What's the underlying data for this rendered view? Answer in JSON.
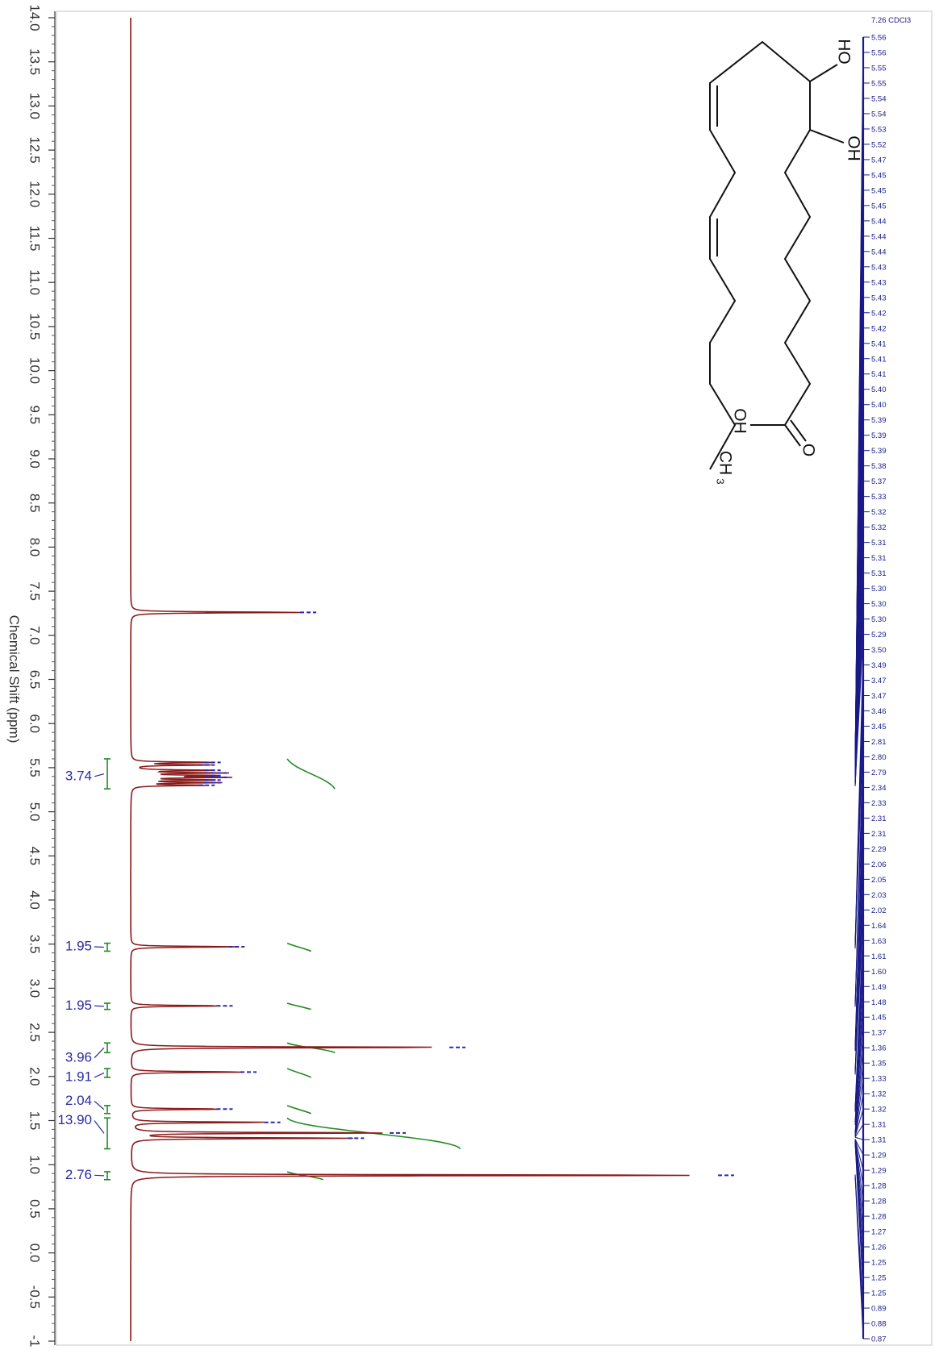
{
  "chart_data": {
    "type": "line",
    "xlabel": "Chemical Shift (ppm)",
    "xlim": [
      -1.0,
      14.0
    ],
    "x_ticks": [
      14.0,
      13.5,
      13.0,
      12.5,
      12.0,
      11.5,
      11.0,
      10.5,
      10.0,
      9.5,
      9.0,
      8.5,
      8.0,
      7.5,
      7.0,
      6.5,
      6.0,
      5.5,
      5.0,
      4.5,
      4.0,
      3.5,
      3.0,
      2.5,
      2.0,
      1.5,
      1.0,
      0.5,
      0.0,
      -0.5,
      -1.0
    ],
    "x_tick_labels": [
      "14.0",
      "13.5",
      "13.0",
      "12.5",
      "12.0",
      "11.5",
      "11.0",
      "10.5",
      "10.0",
      "9.5",
      "9.0",
      "8.5",
      "8.0",
      "7.5",
      "7.0",
      "6.5",
      "6.0",
      "5.5",
      "5.0",
      "4.5",
      "4.0",
      "3.5",
      "3.0",
      "2.5",
      "2.0",
      "1.5",
      "1.0",
      "0.5",
      "0.0",
      "-0.5",
      "-1"
    ],
    "colors": {
      "spectrum": "#8b1a1a",
      "integral": "#1e8c1e",
      "peak_label": "#1a1a8a",
      "integral_label": "#2a2aa0"
    },
    "solvent_label": "7.26 CDCl3",
    "peaks": [
      {
        "shift": 7.26,
        "intensity": 0.3
      },
      {
        "shift": 5.56,
        "intensity": 0.14
      },
      {
        "shift": 5.53,
        "intensity": 0.13
      },
      {
        "shift": 5.47,
        "intensity": 0.14
      },
      {
        "shift": 5.44,
        "intensity": 0.15
      },
      {
        "shift": 5.41,
        "intensity": 0.14
      },
      {
        "shift": 5.39,
        "intensity": 0.15
      },
      {
        "shift": 5.36,
        "intensity": 0.14
      },
      {
        "shift": 5.33,
        "intensity": 0.14
      },
      {
        "shift": 5.3,
        "intensity": 0.13
      },
      {
        "shift": 3.47,
        "intensity": 0.18
      },
      {
        "shift": 2.8,
        "intensity": 0.16
      },
      {
        "shift": 2.33,
        "intensity": 0.55
      },
      {
        "shift": 2.05,
        "intensity": 0.2
      },
      {
        "shift": 1.63,
        "intensity": 0.16
      },
      {
        "shift": 1.48,
        "intensity": 0.24
      },
      {
        "shift": 1.36,
        "intensity": 0.45
      },
      {
        "shift": 1.3,
        "intensity": 0.38
      },
      {
        "shift": 0.88,
        "intensity": 1.0
      }
    ],
    "integrals": [
      {
        "label": "3.74",
        "from": 5.6,
        "to": 5.26,
        "axis_pos": 5.4,
        "rise": 0.08
      },
      {
        "label": "1.95",
        "from": 3.51,
        "to": 3.42,
        "axis_pos": 3.47,
        "rise": 0.04
      },
      {
        "label": "1.95",
        "from": 2.83,
        "to": 2.76,
        "axis_pos": 2.8,
        "rise": 0.04
      },
      {
        "label": "3.96",
        "from": 2.38,
        "to": 2.27,
        "axis_pos": 2.21,
        "rise": 0.08
      },
      {
        "label": "1.91",
        "from": 2.09,
        "to": 1.99,
        "axis_pos": 1.99,
        "rise": 0.04
      },
      {
        "label": "2.04",
        "from": 1.67,
        "to": 1.58,
        "axis_pos": 1.72,
        "rise": 0.04
      },
      {
        "label": "13.90",
        "from": 1.53,
        "to": 1.18,
        "axis_pos": 1.5,
        "rise": 0.29
      },
      {
        "label": "2.76",
        "from": 0.92,
        "to": 0.83,
        "axis_pos": 0.88,
        "rise": 0.06
      }
    ],
    "peak_labels": [
      "5.56",
      "5.56",
      "5.55",
      "5.55",
      "5.54",
      "5.54",
      "5.53",
      "5.52",
      "5.47",
      "5.45",
      "5.45",
      "5.45",
      "5.44",
      "5.44",
      "5.44",
      "5.43",
      "5.43",
      "5.43",
      "5.42",
      "5.42",
      "5.41",
      "5.41",
      "5.41",
      "5.40",
      "5.40",
      "5.39",
      "5.39",
      "5.39",
      "5.38",
      "5.37",
      "5.33",
      "5.32",
      "5.32",
      "5.31",
      "5.31",
      "5.31",
      "5.30",
      "5.30",
      "5.30",
      "5.29",
      "3.50",
      "3.49",
      "3.47",
      "3.47",
      "3.46",
      "3.45",
      "2.81",
      "2.80",
      "2.79",
      "2.34",
      "2.33",
      "2.31",
      "2.31",
      "2.29",
      "2.06",
      "2.05",
      "2.03",
      "2.02",
      "1.64",
      "1.63",
      "1.61",
      "1.60",
      "1.49",
      "1.48",
      "1.45",
      "1.37",
      "1.36",
      "1.35",
      "1.33",
      "1.32",
      "1.32",
      "1.31",
      "1.31",
      "1.29",
      "1.29",
      "1.28",
      "1.28",
      "1.28",
      "1.27",
      "1.26",
      "1.25",
      "1.25",
      "1.25",
      "0.89",
      "0.88",
      "0.87"
    ],
    "structure_labels": {
      "oh1": "HO",
      "oh2": "OH",
      "oh3": "OH",
      "o": "O",
      "ch3": "CH",
      "ch3_sub": "3"
    }
  }
}
